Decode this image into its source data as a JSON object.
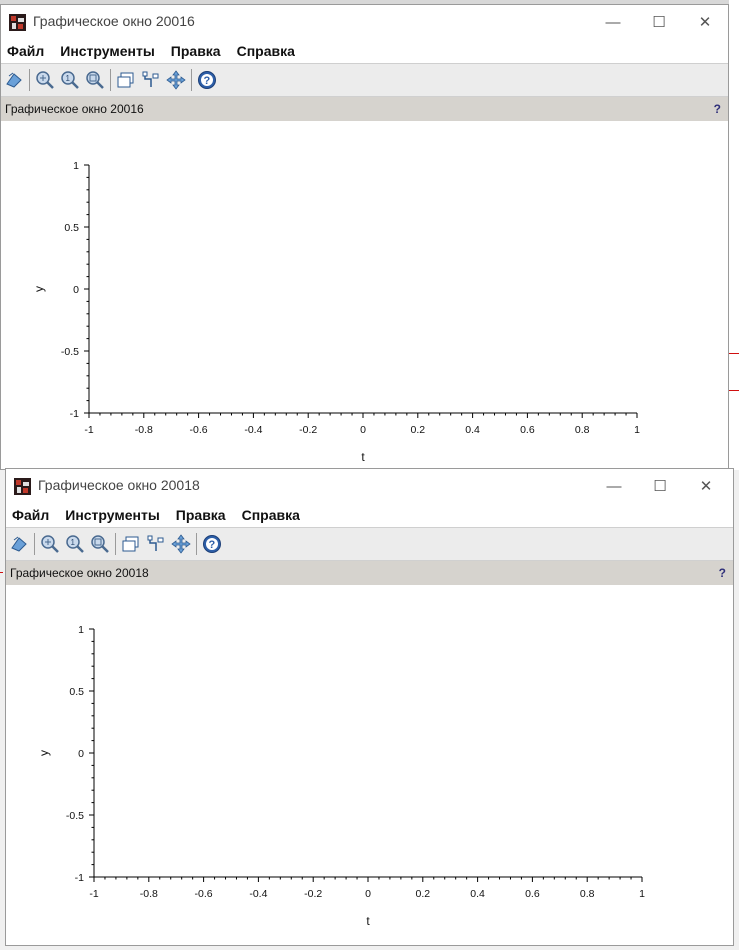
{
  "windows": [
    {
      "title": "Графическое окно 20016",
      "dock_title": "Графическое окно 20016"
    },
    {
      "title": "Графическое окно 20018",
      "dock_title": "Графическое окно 20018"
    }
  ],
  "menu": {
    "file": "Файл",
    "tools": "Инструменты",
    "edit": "Правка",
    "help": "Справка"
  },
  "window_controls": {
    "minimize": "—",
    "maximize": "☐",
    "close": "✕"
  },
  "dock_help": "?",
  "toolbar_icons": [
    "rotate-icon",
    "zoom-in-icon",
    "zoom-original-icon",
    "zoom-area-icon",
    "datatip-icon",
    "data-edit-icon",
    "pan-icon",
    "help-icon"
  ],
  "chart_data": [
    {
      "type": "line",
      "title": "",
      "xlabel": "t",
      "ylabel": "y",
      "xlim": [
        -1,
        1
      ],
      "ylim": [
        -1,
        1
      ],
      "x_ticks": [
        "-1",
        "-0.8",
        "-0.6",
        "-0.4",
        "-0.2",
        "0",
        "0.2",
        "0.4",
        "0.6",
        "0.8",
        "1"
      ],
      "y_ticks": [
        "1",
        "0.5",
        "0",
        "-0.5",
        "-1"
      ],
      "series": [],
      "grid": false
    },
    {
      "type": "line",
      "title": "",
      "xlabel": "t",
      "ylabel": "y",
      "xlim": [
        -1,
        1
      ],
      "ylim": [
        -1,
        1
      ],
      "x_ticks": [
        "-1",
        "-0.8",
        "-0.6",
        "-0.4",
        "-0.2",
        "0",
        "0.2",
        "0.4",
        "0.6",
        "0.8",
        "1"
      ],
      "y_ticks": [
        "1",
        "0.5",
        "0",
        "-0.5",
        "-1"
      ],
      "series": [],
      "grid": false
    }
  ]
}
